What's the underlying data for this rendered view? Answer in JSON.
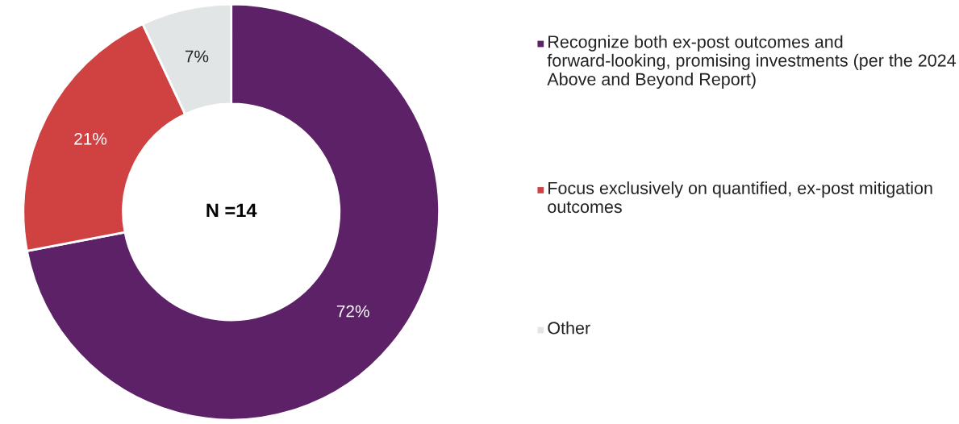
{
  "chart_data": {
    "type": "donut",
    "categories": [
      "Recognize both ex-post outcomes and forward-looking, promising investments (per the 2024 Above and Beyond Report)",
      "Focus exclusively on quantified, ex-post mitigation outcomes",
      "Other"
    ],
    "values": [
      72,
      21,
      7
    ],
    "colors": [
      "#5c2167",
      "#d04242",
      "#e2e5e6"
    ],
    "value_labels": [
      "72%",
      "21%",
      "7%"
    ],
    "annotations": [
      "N =14"
    ],
    "legend": "right"
  }
}
